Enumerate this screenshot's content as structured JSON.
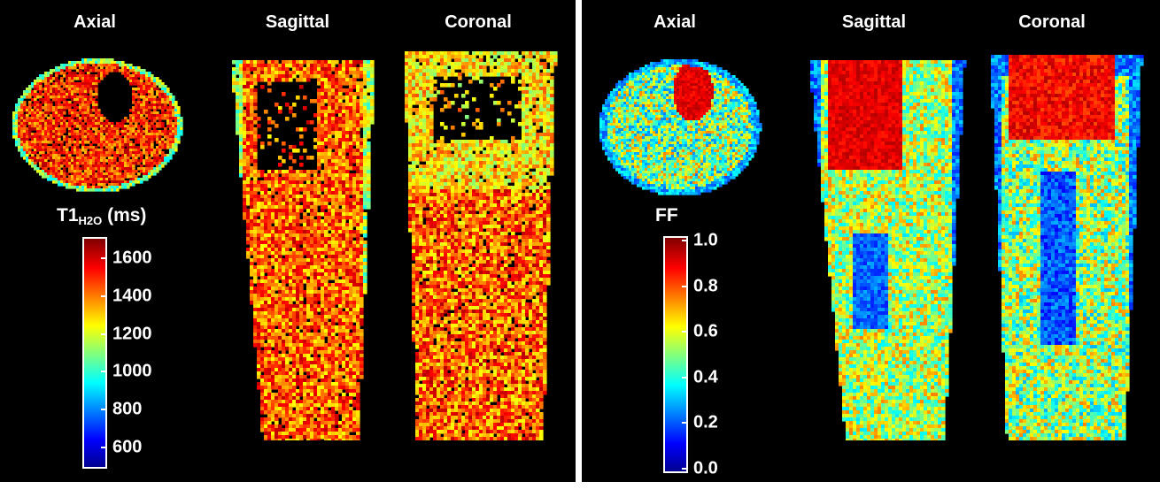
{
  "left_panel": {
    "views": {
      "axial": "Axial",
      "sagittal": "Sagittal",
      "coronal": "Coronal"
    },
    "colorbar": {
      "title_main": "T1",
      "title_sub": "H2O",
      "title_unit": " (ms)",
      "ticks": [
        "1600",
        "1400",
        "1200",
        "1000",
        "800",
        "600"
      ],
      "range": [
        500,
        1700
      ]
    }
  },
  "right_panel": {
    "views": {
      "axial": "Axial",
      "sagittal": "Sagittal",
      "coronal": "Coronal"
    },
    "colorbar": {
      "title": "FF",
      "ticks": [
        "1.0",
        "0.8",
        "0.6",
        "0.4",
        "0.2",
        "0.0"
      ],
      "range": [
        0.0,
        1.0
      ]
    }
  },
  "colormap": "jet"
}
